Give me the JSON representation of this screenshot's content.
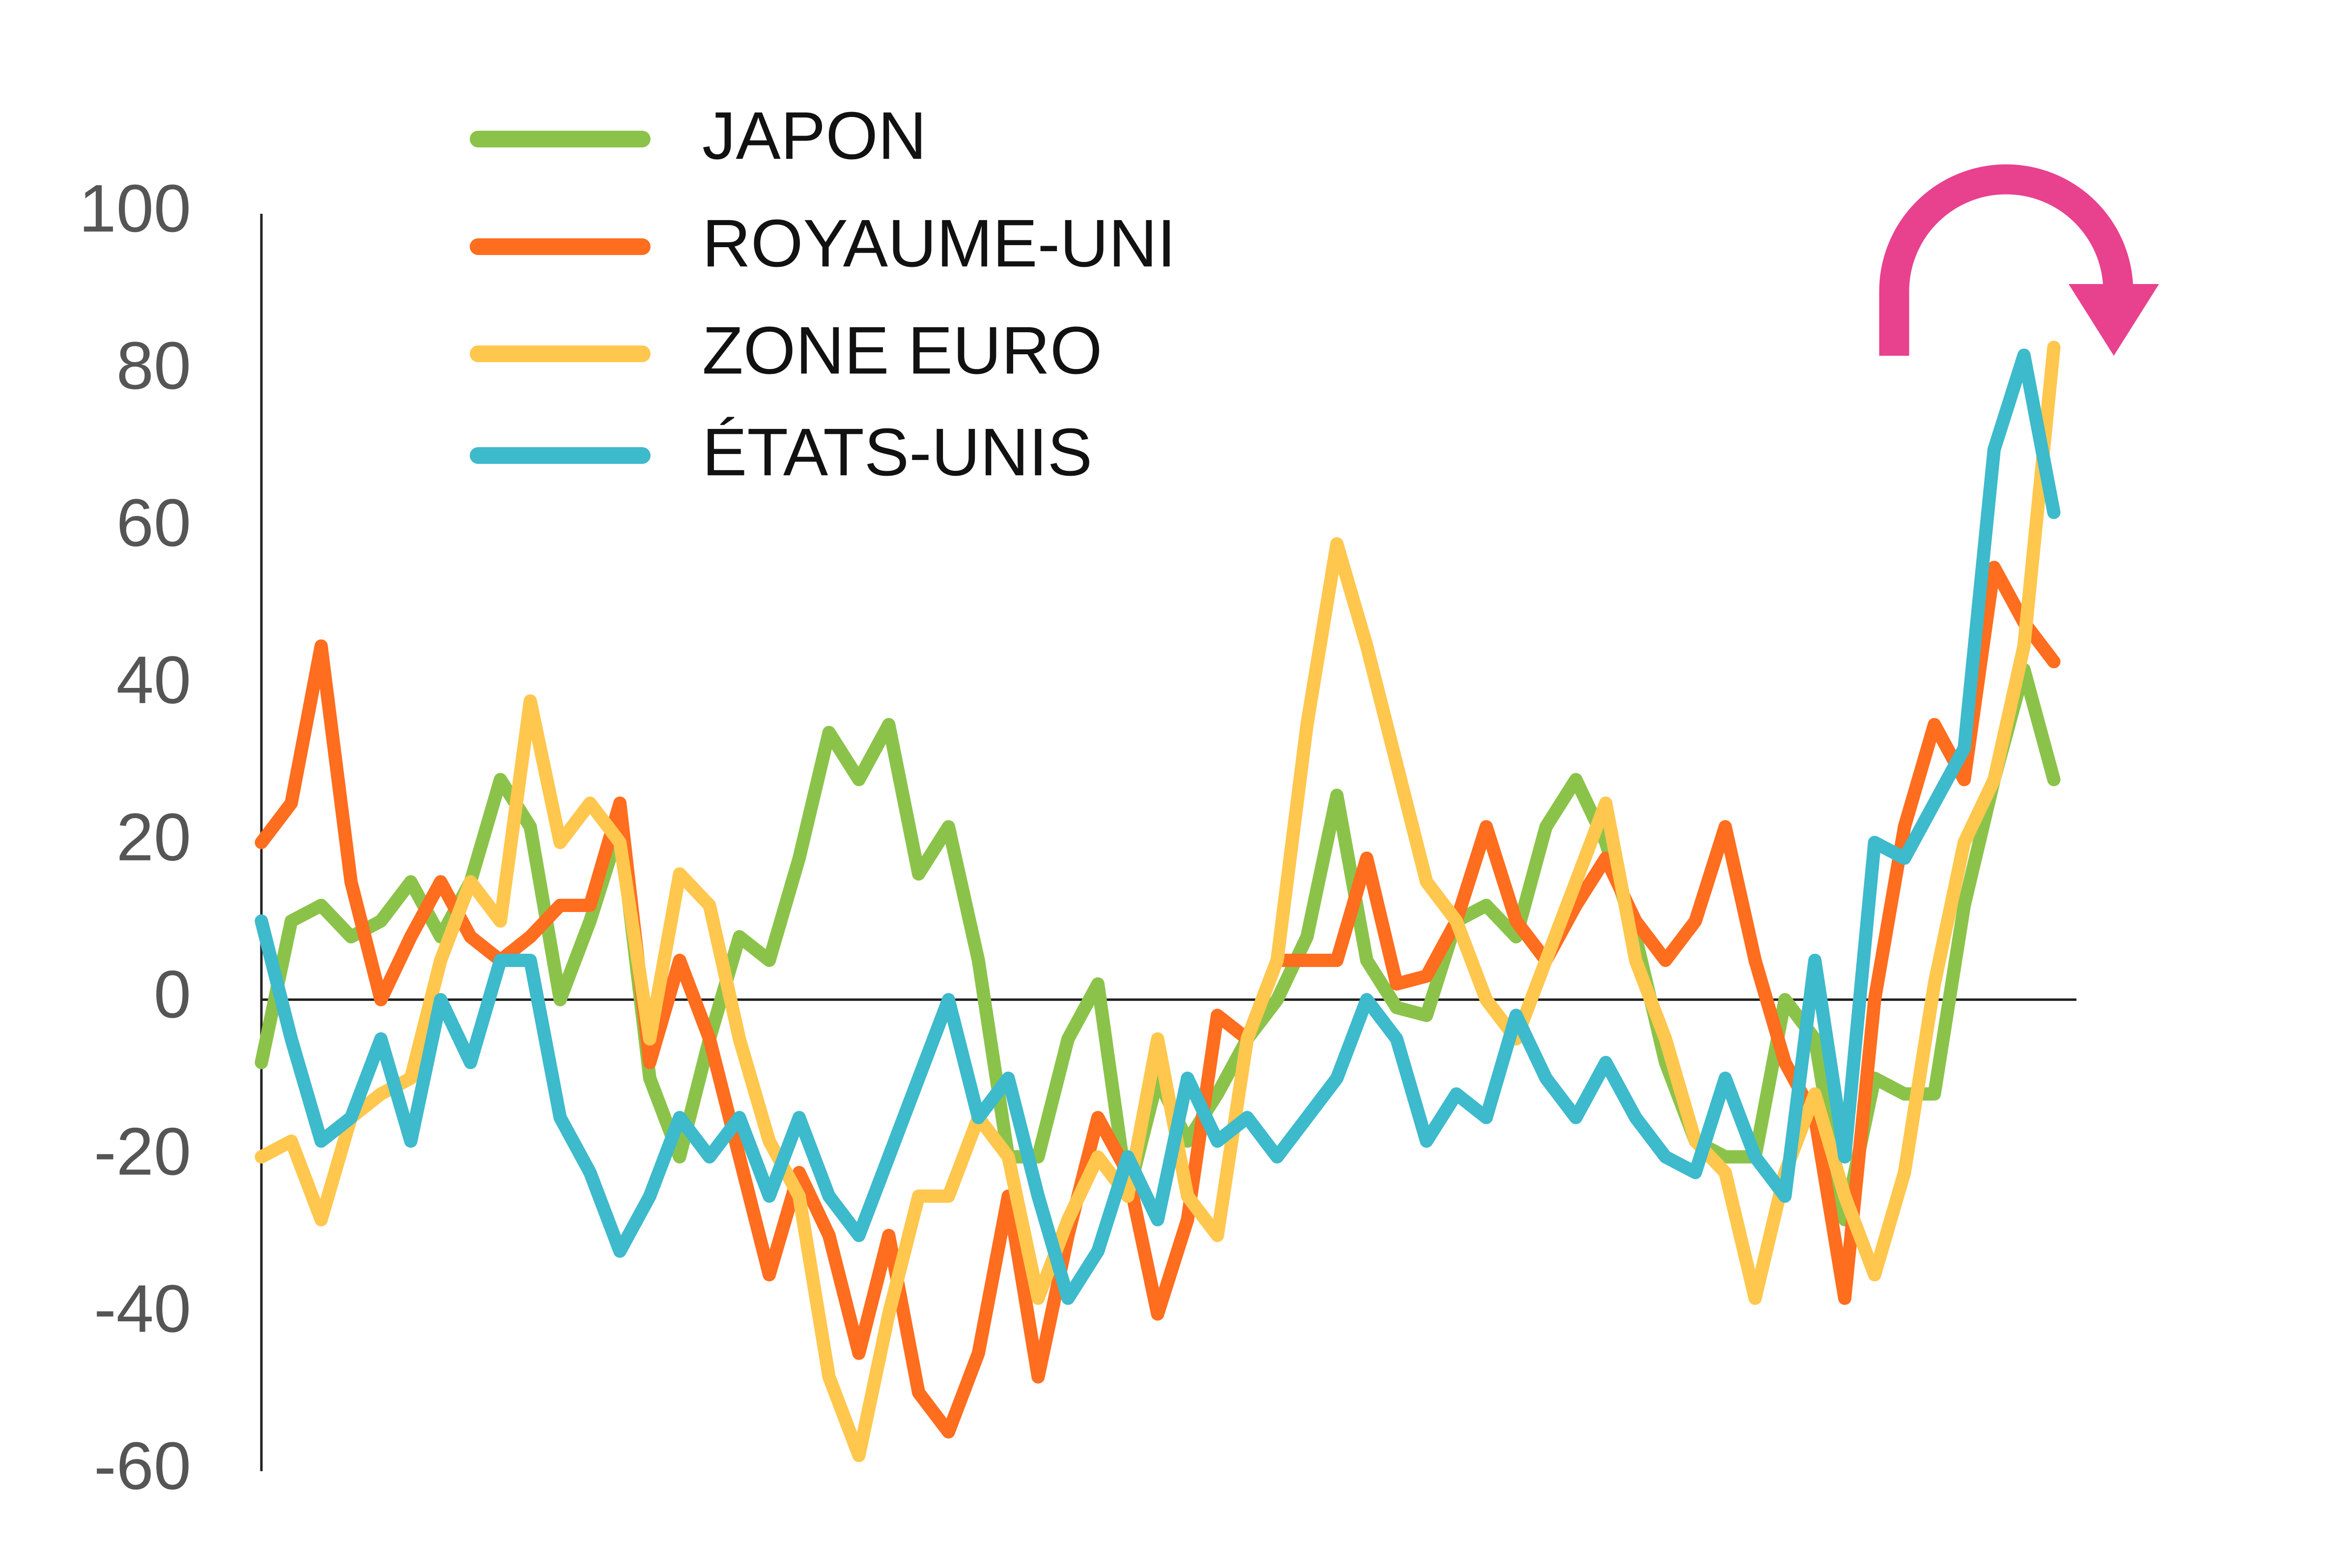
{
  "chart_data": {
    "type": "line",
    "ylim": [
      -60,
      100
    ],
    "yticks": [
      -60,
      -40,
      -20,
      0,
      20,
      40,
      60,
      80,
      100
    ],
    "series": [
      {
        "name": "JAPON",
        "color": "#8bc34a",
        "values": [
          -8,
          10,
          12,
          8,
          10,
          15,
          8,
          15,
          28,
          22,
          0,
          10,
          22,
          -10,
          -20,
          -5,
          8,
          5,
          18,
          34,
          28,
          35,
          16,
          22,
          5,
          -20,
          -20,
          -5,
          2,
          -25,
          -10,
          -18,
          -12,
          -5,
          0,
          8,
          26,
          5,
          -1,
          -2,
          10,
          12,
          8,
          22,
          28,
          20,
          8,
          -8,
          -18,
          -20,
          -20,
          0,
          -5,
          -28,
          -10,
          -12,
          -12,
          12,
          28,
          42,
          28
        ]
      },
      {
        "name": "ROYAUME-UNI",
        "color": "#ff6d1f",
        "values": [
          20,
          25,
          45,
          15,
          0,
          8,
          15,
          8,
          5,
          8,
          12,
          12,
          25,
          -8,
          5,
          -5,
          -20,
          -35,
          -22,
          -30,
          -45,
          -30,
          -50,
          -55,
          -45,
          -25,
          -48,
          -30,
          -15,
          -22,
          -40,
          -28,
          -2,
          -5,
          5,
          5,
          5,
          18,
          2,
          3,
          10,
          22,
          10,
          5,
          12,
          18,
          10,
          5,
          10,
          22,
          5,
          -8,
          -15,
          -38,
          0,
          22,
          35,
          28,
          55,
          48,
          43
        ]
      },
      {
        "name": "ZONE EURO",
        "color": "#ffc74d",
        "values": [
          -20,
          -18,
          -28,
          -15,
          -12,
          -10,
          5,
          15,
          10,
          38,
          20,
          25,
          20,
          -5,
          16,
          12,
          -5,
          -18,
          -25,
          -48,
          -58,
          -40,
          -25,
          -25,
          -15,
          -20,
          -38,
          -28,
          -20,
          -25,
          -5,
          -25,
          -30,
          -5,
          5,
          35,
          58,
          45,
          30,
          15,
          10,
          0,
          -5,
          5,
          15,
          25,
          5,
          -5,
          -18,
          -22,
          -38,
          -22,
          -12,
          -25,
          -35,
          -22,
          2,
          20,
          28,
          45,
          83
        ]
      },
      {
        "name": "ÉTATS-UNIS",
        "color": "#3dbacb",
        "values": [
          10,
          -5,
          -18,
          -15,
          -5,
          -18,
          0,
          -8,
          5,
          5,
          -15,
          -22,
          -32,
          -25,
          -15,
          -20,
          -15,
          -25,
          -15,
          -25,
          -30,
          -20,
          -10,
          0,
          -15,
          -10,
          -25,
          -38,
          -32,
          -20,
          -28,
          -10,
          -18,
          -15,
          -20,
          -15,
          -10,
          0,
          -5,
          -18,
          -12,
          -15,
          -2,
          -10,
          -15,
          -8,
          -15,
          -20,
          -22,
          -10,
          -20,
          -25,
          5,
          -20,
          20,
          18,
          25,
          32,
          70,
          82,
          62
        ]
      }
    ]
  }
}
